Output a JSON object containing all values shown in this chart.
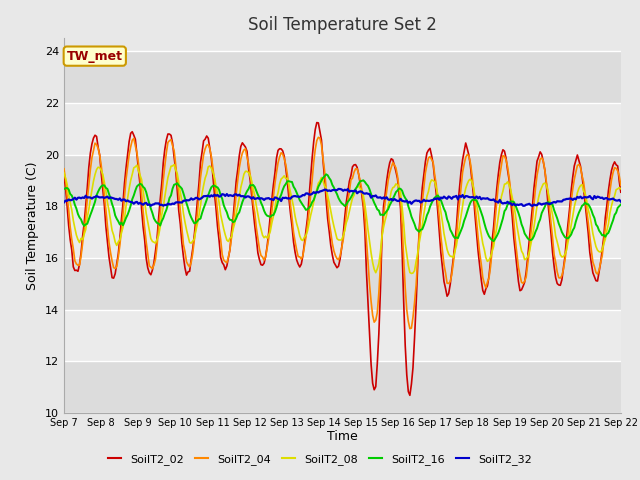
{
  "title": "Soil Temperature Set 2",
  "xlabel": "Time",
  "ylabel": "Soil Temperature (C)",
  "ylim": [
    10,
    24.5
  ],
  "yticks": [
    10,
    12,
    14,
    16,
    18,
    20,
    22,
    24
  ],
  "xtick_labels": [
    "Sep 7",
    "Sep 8",
    "Sep 9",
    "Sep 10",
    "Sep 11",
    "Sep 12",
    "Sep 13",
    "Sep 14",
    "Sep 15",
    "Sep 16",
    "Sep 17",
    "Sep 18",
    "Sep 19",
    "Sep 20",
    "Sep 21",
    "Sep 22"
  ],
  "colors": {
    "SoilT2_02": "#cc0000",
    "SoilT2_04": "#ff8800",
    "SoilT2_08": "#dddd00",
    "SoilT2_16": "#00cc00",
    "SoilT2_32": "#0000cc"
  },
  "legend_labels": [
    "SoilT2_02",
    "SoilT2_04",
    "SoilT2_08",
    "SoilT2_16",
    "SoilT2_32"
  ],
  "annotation_text": "TW_met",
  "annotation_box_color": "#ffffcc",
  "annotation_text_color": "#990000",
  "background_color": "#e8e8e8",
  "plot_bg_color": "#e8e8e8",
  "band_color_light": "#f0f0f0",
  "band_color_dark": "#e0e0e0",
  "title_fontsize": 12,
  "axis_fontsize": 9,
  "tick_fontsize": 8
}
